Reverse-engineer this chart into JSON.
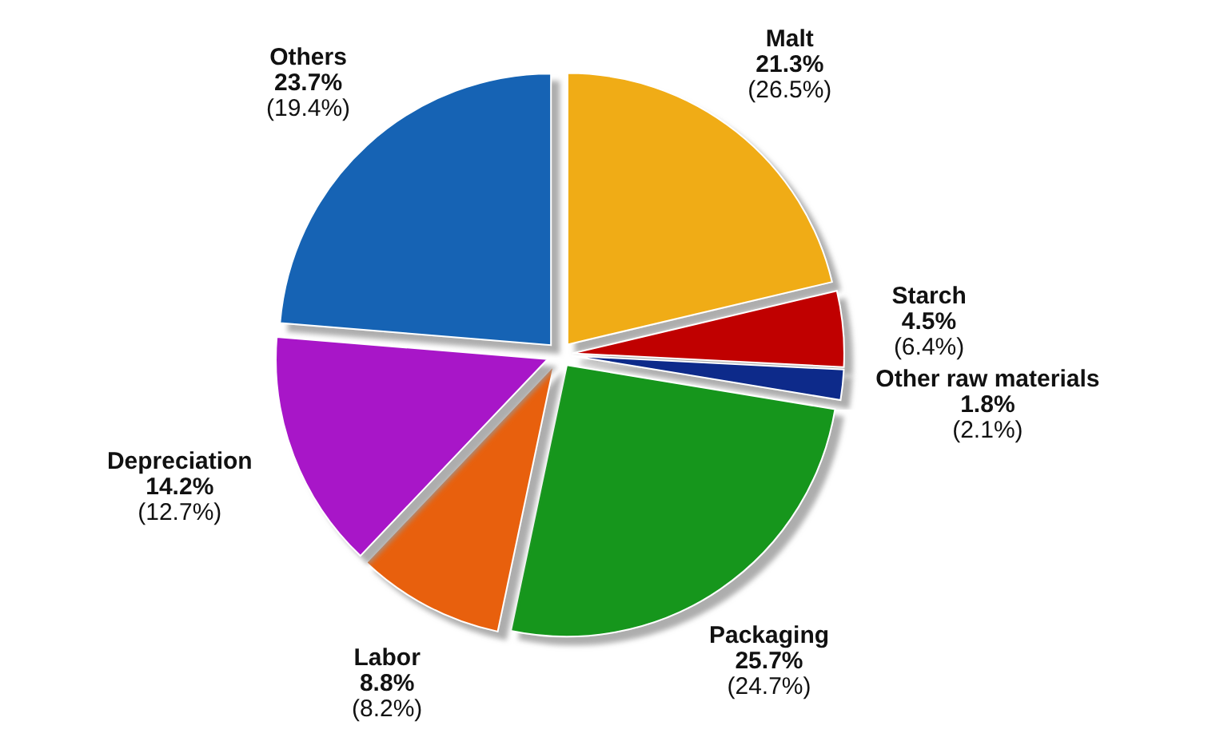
{
  "chart_data": {
    "type": "pie",
    "categories": [
      "Malt",
      "Starch",
      "Other raw materials",
      "Packaging",
      "Labor",
      "Depreciation",
      "Others"
    ],
    "values": [
      21.3,
      4.5,
      1.8,
      25.7,
      8.8,
      14.2,
      23.7
    ],
    "colors": [
      "#f0ac14",
      "#c00000",
      "#0a2a8a",
      "#14961e",
      "#e8600f",
      "#a818c8",
      "#1464b4"
    ],
    "value_labels": [
      "21.3%\n(26.5%)",
      "4.5%\n(6.4%)",
      "1.8%\n(2.1%)",
      "25.7%\n(24.7%)",
      "8.8%\n(8.2%)",
      "14.2%\n(12.7%)",
      "23.7%\n(19.4%)"
    ]
  }
}
